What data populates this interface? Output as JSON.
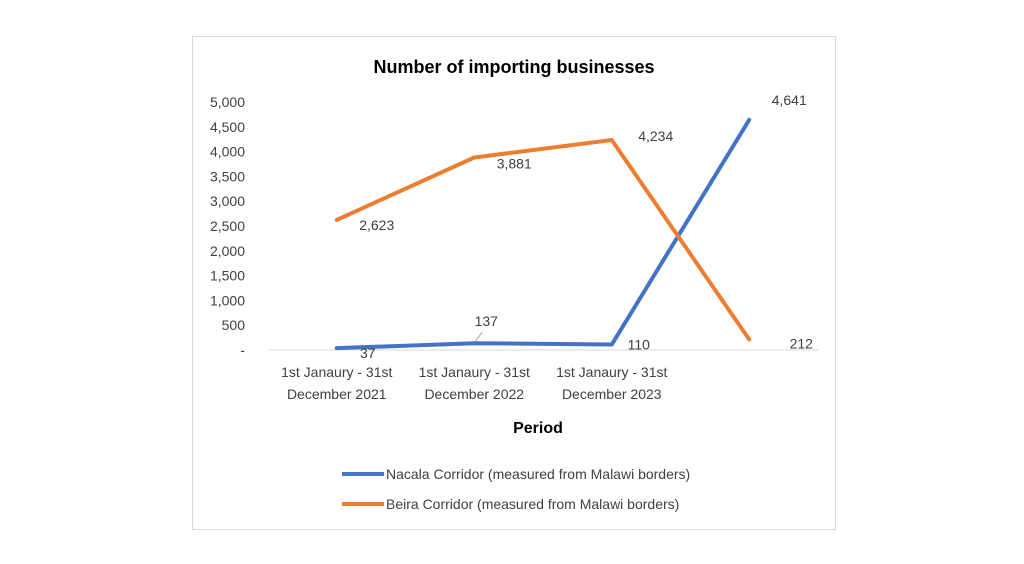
{
  "chart_data": {
    "type": "line",
    "title": "Number of importing businesses",
    "xlabel": "Period",
    "ylabel": "",
    "ylim": [
      0,
      5000
    ],
    "ytick_values": [
      0,
      500,
      1000,
      1500,
      2000,
      2500,
      3000,
      3500,
      4000,
      4500,
      5000
    ],
    "ytick_labels": [
      "-",
      "500",
      "1,000",
      "1,500",
      "2,000",
      "2,500",
      "3,000",
      "3,500",
      "4,000",
      "4,500",
      "5,000"
    ],
    "categories": [
      [
        "1st Janaury - 31st",
        "December 2021"
      ],
      [
        "1st Janaury - 31st",
        "December 2022"
      ],
      [
        "1st Janaury - 31st",
        "December 2023"
      ],
      [
        "",
        ""
      ]
    ],
    "series": [
      {
        "name": "Nacala Corridor (measured from Malawi borders)",
        "color": "#4472C4",
        "values": [
          37,
          137,
          110,
          4641
        ],
        "labels": [
          "37",
          "137",
          "110",
          "4,641"
        ]
      },
      {
        "name": "Beira Corridor (measured from Malawi borders)",
        "color": "#ED7D31",
        "values": [
          2623,
          3881,
          4234,
          212
        ],
        "labels": [
          "2,623",
          "3,881",
          "4,234",
          "212"
        ]
      }
    ],
    "legend_position": "bottom",
    "grid": false
  }
}
